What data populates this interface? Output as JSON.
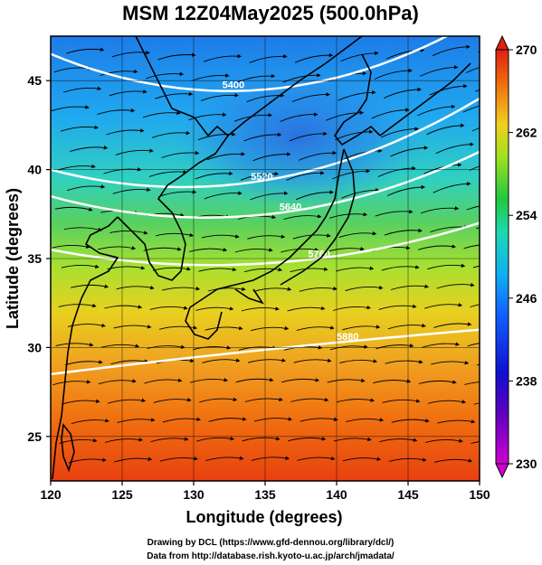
{
  "title": "MSM 12Z04May2025 (500.0hPa)",
  "xlabel": "Longitude (degrees)",
  "ylabel": "Latitude  (degrees)",
  "credits": [
    "Drawing by DCL (https://www.gfd-dennou.org/library/dcl/)",
    "Data from http://database.rish.kyoto-u.ac.jp/arch/jmadata/"
  ],
  "chart_data": {
    "type": "heatmap",
    "xlim": [
      120,
      150
    ],
    "ylim": [
      22.5,
      47.5
    ],
    "x_ticks": [
      120,
      125,
      130,
      135,
      140,
      145,
      150
    ],
    "y_ticks": [
      25,
      30,
      35,
      40,
      45
    ],
    "grid": true,
    "colorbar": {
      "min": 230,
      "max": 270,
      "ticks": [
        230,
        238,
        246,
        254,
        262,
        270
      ],
      "colors": [
        "#cc00cc",
        "#2020c0",
        "#1090ff",
        "#20d0d0",
        "#30c040",
        "#c0e020",
        "#f0b020",
        "#f05010",
        "#e03010"
      ]
    },
    "contours": [
      {
        "label": "5400",
        "lat_at_120": 46.5,
        "lat_at_135": 41.5,
        "lat_at_150": 48.5
      },
      {
        "label": "5520",
        "lat_at_120": 40.0,
        "lat_at_135": 36.8,
        "lat_at_150": 44.0
      },
      {
        "label": "5640",
        "lat_at_120": 38.5,
        "lat_at_135": 35.2,
        "lat_at_150": 41.0
      },
      {
        "label": "5760",
        "lat_at_120": 35.5,
        "lat_at_135": 33.2,
        "lat_at_150": 37.0
      },
      {
        "label": "5880",
        "lat_at_120": 28.5,
        "lat_at_135": 30.0,
        "lat_at_150": 31.0
      }
    ],
    "colors": {
      "contour": "#ffffff",
      "coast": "#000000",
      "streamline": "#000000"
    }
  }
}
